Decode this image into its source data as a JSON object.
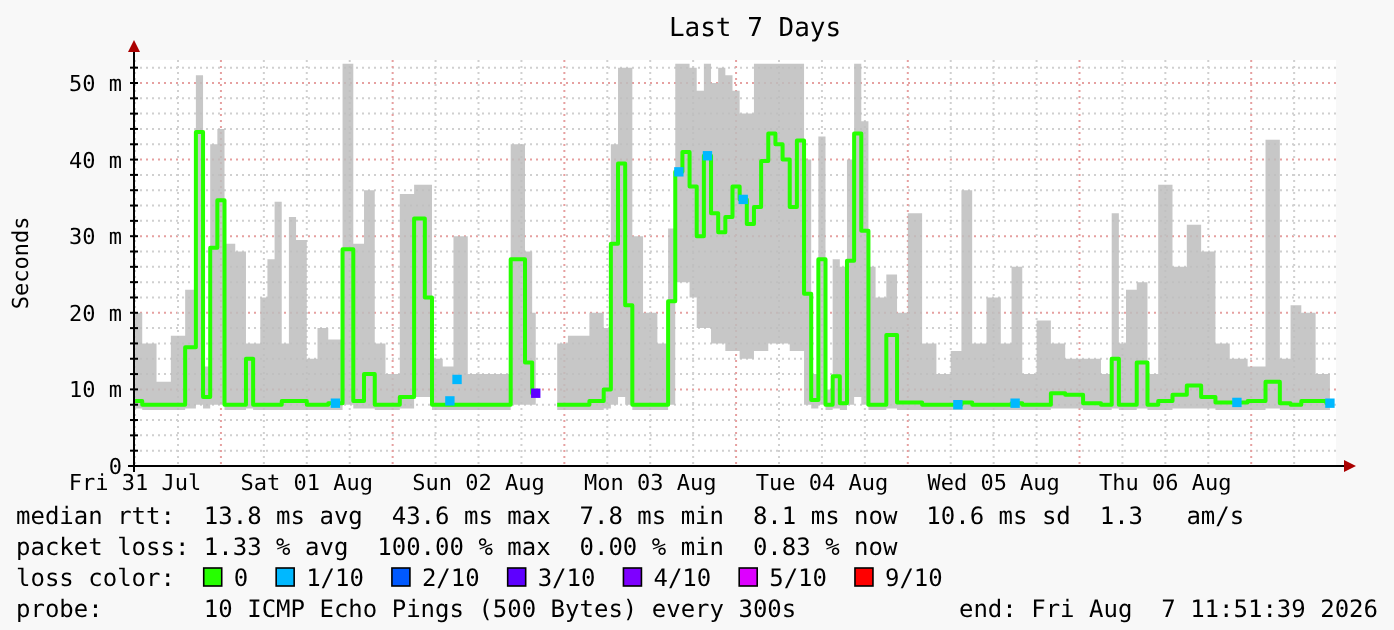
{
  "chart_data": {
    "type": "step",
    "title": "Last 7 Days",
    "ylabel": "Seconds",
    "legend_title": "loss color:",
    "legend": "bottom",
    "grid": true,
    "xlim": [
      "2026-07-31T11:51",
      "2026-08-07T11:51"
    ],
    "xticks": [
      {
        "value": "2026-07-31T12:00",
        "label": "Fri 31 Jul"
      },
      {
        "value": "2026-07-31T18:00",
        "label": null
      },
      {
        "value": "2026-08-01T00:00",
        "label": null
      },
      {
        "value": "2026-08-01T06:00",
        "label": null
      },
      {
        "value": "2026-08-01T12:00",
        "label": "Sat 01 Aug"
      },
      {
        "value": "2026-08-01T18:00",
        "label": null
      },
      {
        "value": "2026-08-02T00:00",
        "label": null
      },
      {
        "value": "2026-08-02T06:00",
        "label": null
      },
      {
        "value": "2026-08-02T12:00",
        "label": "Sun 02 Aug"
      },
      {
        "value": "2026-08-02T18:00",
        "label": null
      },
      {
        "value": "2026-08-03T00:00",
        "label": null
      },
      {
        "value": "2026-08-03T06:00",
        "label": null
      },
      {
        "value": "2026-08-03T12:00",
        "label": "Mon 03 Aug"
      },
      {
        "value": "2026-08-03T18:00",
        "label": null
      },
      {
        "value": "2026-08-04T00:00",
        "label": null
      },
      {
        "value": "2026-08-04T06:00",
        "label": null
      },
      {
        "value": "2026-08-04T12:00",
        "label": "Tue 04 Aug"
      },
      {
        "value": "2026-08-04T18:00",
        "label": null
      },
      {
        "value": "2026-08-05T00:00",
        "label": null
      },
      {
        "value": "2026-08-05T06:00",
        "label": null
      },
      {
        "value": "2026-08-05T12:00",
        "label": "Wed 05 Aug"
      },
      {
        "value": "2026-08-05T18:00",
        "label": null
      },
      {
        "value": "2026-08-06T00:00",
        "label": null
      },
      {
        "value": "2026-08-06T06:00",
        "label": null
      },
      {
        "value": "2026-08-06T12:00",
        "label": "Thu 06 Aug"
      },
      {
        "value": "2026-08-06T18:00",
        "label": null
      },
      {
        "value": "2026-08-07T00:00",
        "label": null
      },
      {
        "value": "2026-08-07T06:00",
        "label": null
      }
    ],
    "ylim": [
      0,
      53
    ],
    "yticks": [
      0,
      {
        "value": 2,
        "label": null
      },
      {
        "value": 4,
        "label": null
      },
      {
        "value": 6,
        "label": null
      },
      {
        "value": 8,
        "label": null
      },
      {
        "value": 10,
        "label": "10 m"
      },
      {
        "value": 12,
        "label": null
      },
      {
        "value": 14,
        "label": null
      },
      {
        "value": 16,
        "label": null
      },
      {
        "value": 18,
        "label": null
      },
      {
        "value": 20,
        "label": "20 m"
      },
      {
        "value": 22,
        "label": null
      },
      {
        "value": 24,
        "label": null
      },
      {
        "value": 26,
        "label": null
      },
      {
        "value": 28,
        "label": null
      },
      {
        "value": 30,
        "label": "30 m"
      },
      {
        "value": 32,
        "label": null
      },
      {
        "value": 34,
        "label": null
      },
      {
        "value": 36,
        "label": null
      },
      {
        "value": 38,
        "label": null
      },
      {
        "value": 40,
        "label": "40 m"
      },
      {
        "value": 42,
        "label": null
      },
      {
        "value": 44,
        "label": null
      },
      {
        "value": 46,
        "label": null
      },
      {
        "value": 48,
        "label": null
      },
      {
        "value": 50,
        "label": "50 m"
      },
      {
        "value": 52,
        "label": null
      }
    ],
    "annotations": [
      "median rtt:  13.8 ms avg  43.6 ms max  7.8 ms min  8.1 ms now  10.6 ms sd  1.3   am/s",
      "packet loss: 1.33 % avg  100.00 % max  0.00 % min  0.83 % now",
      "probe:       10 ICMP Echo Pings (500 Bytes) every 300s",
      "end: Fri Aug  7 11:51:39 2026"
    ],
    "series": [
      {
        "name": "0",
        "color": "#26ff00",
        "x": [
          "2026-07-31T12:00",
          "2026-07-31T14:00",
          "2026-07-31T16:00",
          "2026-07-31T18:00",
          "2026-07-31T20:00",
          "2026-07-31T21:00",
          "2026-07-31T22:00",
          "2026-07-31T23:00",
          "2026-08-01T00:00",
          "2026-08-01T01:00",
          "2026-08-01T03:00",
          "2026-08-01T04:00",
          "2026-08-01T05:00",
          "2026-08-01T06:00",
          "2026-08-01T07:00",
          "2026-08-01T08:00",
          "2026-08-01T09:00",
          "2026-08-01T10:00",
          "2026-08-01T11:00",
          "2026-08-01T13:00",
          "2026-08-01T14:00",
          "2026-08-01T16:00",
          "2026-08-01T18:00",
          "2026-08-01T19:00",
          "2026-08-01T21:00",
          "2026-08-01T22:00",
          "2026-08-02T00:00",
          "2026-08-02T02:00",
          "2026-08-02T04:00",
          "2026-08-02T05:00",
          "2026-08-02T06:00",
          "2026-08-02T08:00",
          "2026-08-02T09:00",
          "2026-08-02T12:00",
          "2026-08-02T15:00",
          "2026-08-02T18:00",
          "2026-08-02T19:00",
          "2026-08-02T20:00",
          "2026-08-02T21:00",
          "2026-08-02T23:00",
          "2026-08-03T02:00",
          "2026-08-03T05:00",
          "2026-08-03T06:00",
          "2026-08-03T07:00",
          "2026-08-03T08:00",
          "2026-08-03T09:00",
          "2026-08-03T10:00",
          "2026-08-03T12:00",
          "2026-08-03T14:00",
          "2026-08-03T15:00",
          "2026-08-03T16:00",
          "2026-08-03T17:00",
          "2026-08-03T18:00",
          "2026-08-03T19:00",
          "2026-08-03T20:00",
          "2026-08-03T21:00",
          "2026-08-03T22:00",
          "2026-08-03T23:00",
          "2026-08-04T00:00",
          "2026-08-04T01:00",
          "2026-08-04T02:00",
          "2026-08-04T03:00",
          "2026-08-04T04:00",
          "2026-08-04T05:00",
          "2026-08-04T06:00",
          "2026-08-04T07:00",
          "2026-08-04T08:00",
          "2026-08-04T09:00",
          "2026-08-04T10:00",
          "2026-08-04T11:00",
          "2026-08-04T12:00",
          "2026-08-04T13:00",
          "2026-08-04T14:00",
          "2026-08-04T15:00",
          "2026-08-04T16:00",
          "2026-08-04T17:00",
          "2026-08-04T18:00",
          "2026-08-04T19:00",
          "2026-08-04T20:00",
          "2026-08-04T22:00",
          "2026-08-04T23:00",
          "2026-08-05T01:00",
          "2026-08-05T03:00",
          "2026-08-05T05:00",
          "2026-08-05T07:00",
          "2026-08-05T08:00",
          "2026-08-05T10:00",
          "2026-08-05T12:00",
          "2026-08-05T14:00",
          "2026-08-05T15:00",
          "2026-08-05T17:00",
          "2026-08-05T19:00",
          "2026-08-05T21:00",
          "2026-08-05T23:00",
          "2026-08-06T02:00",
          "2026-08-06T04:00",
          "2026-08-06T05:00",
          "2026-08-06T06:00",
          "2026-08-06T07:00",
          "2026-08-06T09:00",
          "2026-08-06T10:00",
          "2026-08-06T12:00",
          "2026-08-06T14:00",
          "2026-08-06T16:00",
          "2026-08-06T18:00",
          "2026-08-06T20:00",
          "2026-08-06T22:00",
          "2026-08-07T01:00",
          "2026-08-07T03:00",
          "2026-08-07T05:00",
          "2026-08-07T06:00",
          "2026-08-07T08:00",
          "2026-08-07T10:00",
          "2026-08-07T11:00"
        ],
        "values": [
          8.5,
          8,
          8,
          8,
          15.5,
          43.6,
          9,
          28.5,
          34.7,
          8,
          8,
          14,
          8,
          8,
          8,
          8,
          8.5,
          8.5,
          8.5,
          8,
          8,
          8.2,
          28.3,
          8.5,
          12,
          8,
          8,
          9,
          32.3,
          22,
          8,
          8,
          8,
          8,
          8,
          27,
          13.5,
          9.5,
          null,
          8,
          8,
          8.5,
          10,
          29,
          39.5,
          21,
          8,
          8,
          8,
          21.5,
          38.4,
          41,
          36.5,
          30,
          40.5,
          33,
          30.5,
          32.5,
          36.5,
          34.8,
          31.6,
          33.8,
          39.8,
          43.4,
          42,
          40,
          33.8,
          42.5,
          22.5,
          8.6,
          27,
          8,
          11.7,
          8.2,
          26.8,
          43.4,
          30.7,
          8,
          8,
          17.1,
          8.3,
          8.3,
          8,
          8,
          8,
          8.3,
          8,
          8,
          8,
          8.2,
          8,
          8,
          9.5,
          9.3,
          8.2,
          8,
          14,
          8,
          8,
          13.5,
          8,
          8.5,
          9.3,
          10.5,
          9,
          8.3,
          8.3,
          8.5,
          11,
          8.2,
          8,
          8.5,
          8.5,
          8.2
        ],
        "lower": [
          7.5,
          7.3,
          7.3,
          7.3,
          7.5,
          8,
          7.5,
          8,
          8,
          7.3,
          7.3,
          7.5,
          7.3,
          7.3,
          7.3,
          7.3,
          7.3,
          7.3,
          7.3,
          7.3,
          7.3,
          7.3,
          8,
          7.5,
          7.5,
          7.3,
          7.3,
          7.5,
          9,
          9,
          7.3,
          7.3,
          7.3,
          7.3,
          7.3,
          8,
          8,
          8,
          null,
          7.3,
          7.3,
          7.3,
          7.5,
          8,
          9,
          8,
          7.3,
          7.3,
          7.3,
          8,
          24,
          24,
          22,
          18,
          18,
          16,
          16,
          15,
          15,
          14,
          14,
          15,
          15,
          16,
          16,
          16,
          15,
          15,
          8,
          7.5,
          8,
          7.3,
          7.5,
          7.3,
          8,
          9,
          8,
          7.3,
          7.3,
          7.5,
          7.3,
          7.3,
          7.3,
          7.3,
          7.3,
          7.3,
          7.3,
          7.3,
          7.3,
          7.3,
          7.3,
          7.3,
          7.5,
          7.5,
          7.3,
          7.3,
          7.5,
          7.3,
          7.3,
          7.5,
          7.3,
          7.3,
          7.5,
          7.5,
          7.5,
          7.3,
          7.3,
          7.3,
          7.5,
          7.3,
          7.3,
          7.3,
          7.3,
          7.3
        ],
        "upper": [
          20,
          16,
          11,
          17,
          23,
          51,
          13,
          42,
          44,
          29,
          28,
          16,
          16,
          22,
          27,
          34.5,
          16,
          32.5,
          29.5,
          14,
          18,
          16.5,
          52.5,
          29,
          36,
          16,
          12,
          35.5,
          36.7,
          36.7,
          14,
          13,
          30,
          12,
          12,
          42,
          28,
          20,
          null,
          16,
          17,
          20,
          18,
          42,
          52,
          52,
          30,
          20,
          16,
          31,
          52.5,
          52.5,
          52,
          49,
          52.5,
          50,
          52,
          51,
          49,
          46,
          46,
          52.5,
          52.5,
          52.5,
          52.5,
          52.5,
          52.5,
          52.5,
          40,
          12,
          43,
          10,
          27,
          26,
          40,
          52.5,
          45,
          26,
          22,
          25,
          20,
          33,
          16,
          12,
          15,
          36,
          16,
          22,
          16,
          26,
          12,
          19,
          16,
          14,
          14,
          12,
          33,
          16,
          23,
          24,
          12,
          36.7,
          26,
          31.5,
          28,
          16,
          14,
          13,
          42.6,
          14,
          21,
          20,
          12,
          12
        ]
      },
      {
        "name": "1/10",
        "type": "scatter",
        "marker": "square",
        "color": "#00b8ff",
        "x": [
          "2026-08-01T16:00",
          "2026-08-02T08:00",
          "2026-08-02T09:00",
          "2026-08-03T16:00",
          "2026-08-03T20:00",
          "2026-08-04T01:00",
          "2026-08-05T07:00",
          "2026-08-05T15:00",
          "2026-08-06T22:00",
          "2026-08-07T11:00"
        ],
        "values": [
          8.2,
          8.5,
          11.3,
          38.4,
          40.5,
          34.8,
          8,
          8.2,
          8.3,
          8.2
        ]
      },
      {
        "name": "2/10",
        "type": "scatter",
        "color": "#0059ff"
      },
      {
        "name": "3/10",
        "type": "scatter",
        "marker": "square",
        "color": "#5e00ff",
        "x": [
          "2026-08-02T20:00"
        ],
        "values": [
          9.5
        ]
      },
      {
        "name": "4/10",
        "type": "scatter",
        "color": "#7e00ff"
      },
      {
        "name": "5/10",
        "type": "scatter",
        "color": "#dd00ff"
      },
      {
        "name": "9/10",
        "type": "scatter",
        "color": "#ff0000"
      }
    ]
  }
}
